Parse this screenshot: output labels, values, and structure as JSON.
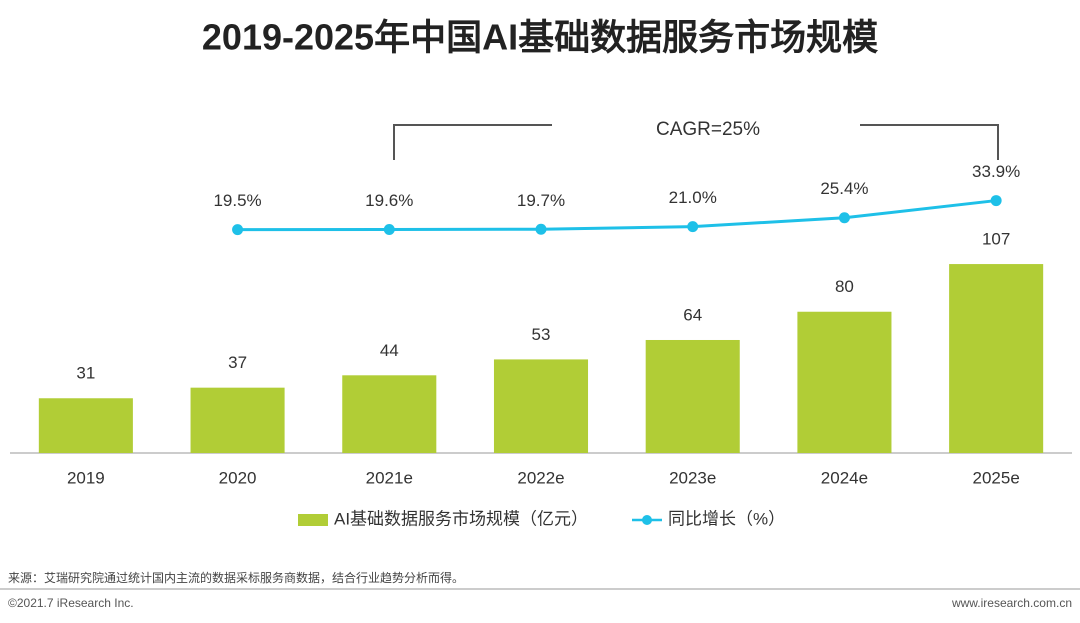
{
  "chart_data": {
    "type": "bar",
    "title": "2019-2025年中国AI基础数据服务市场规模",
    "categories": [
      "2019",
      "2020",
      "2021e",
      "2022e",
      "2023e",
      "2024e",
      "2025e"
    ],
    "series": [
      {
        "name": "AI基础数据服务市场规模（亿元）",
        "type": "bar",
        "color": "#b1cd36",
        "values": [
          31,
          37,
          44,
          53,
          64,
          80,
          107
        ]
      },
      {
        "name": "同比增长（%）",
        "type": "line",
        "axis": "y2",
        "color": "#1ec0e8",
        "values": [
          null,
          19.5,
          19.6,
          19.7,
          21.0,
          25.4,
          33.9
        ],
        "value_labels": [
          null,
          "19.5%",
          "19.6%",
          "19.7%",
          "21.0%",
          "25.4%",
          "33.9%"
        ]
      }
    ],
    "ylim": [
      0,
      190
    ],
    "y2lim": [
      -91,
      75
    ],
    "annotation": "CAGR=25%",
    "source": "来源：艾瑞研究院通过统计国内主流的数据采标服务商数据，结合行业趋势分析而得。",
    "copyright": "©2021.7 iResearch Inc.",
    "website": "www.iresearch.com.cn"
  }
}
